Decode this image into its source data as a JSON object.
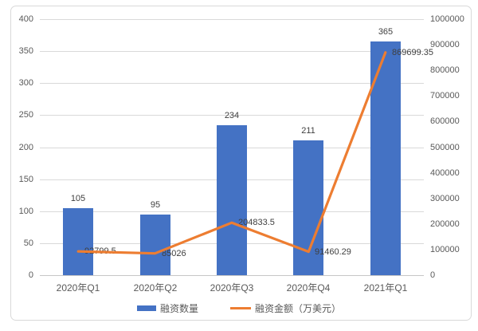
{
  "chart_data": {
    "type": "bar+line",
    "categories": [
      "2020年Q1",
      "2020年Q2",
      "2020年Q3",
      "2020年Q4",
      "2021年Q1"
    ],
    "series": [
      {
        "name": "融资数量",
        "type": "bar",
        "axis": "left",
        "color": "#4472C4",
        "values": [
          105,
          95,
          234,
          211,
          365
        ],
        "labels": [
          "105",
          "95",
          "234",
          "211",
          "365"
        ]
      },
      {
        "name": "融资金额（万美元）",
        "type": "line",
        "axis": "right",
        "color": "#ED7D31",
        "values": [
          92799.5,
          85026,
          204833.5,
          91460.29,
          869699.35
        ],
        "labels": [
          "92799.5",
          "85026",
          "204833.5",
          "91460.29",
          "869699.35"
        ]
      }
    ],
    "left_axis": {
      "min": 0,
      "max": 400,
      "step": 50,
      "ticks": [
        "0",
        "50",
        "100",
        "150",
        "200",
        "250",
        "300",
        "350",
        "400"
      ]
    },
    "right_axis": {
      "min": 0,
      "max": 1000000,
      "step": 100000,
      "ticks": [
        "0",
        "100000",
        "200000",
        "300000",
        "400000",
        "500000",
        "600000",
        "700000",
        "800000",
        "900000",
        "1000000"
      ]
    },
    "grid": true,
    "legend_position": "bottom"
  },
  "colors": {
    "bar": "#4472C4",
    "line": "#ED7D31",
    "gridline": "#D9D9D9",
    "axis_zero_line": "#C6C6C6",
    "axis_text": "#595959",
    "data_label": "#404040",
    "frame_border": "#D9D9D9",
    "background": "#FFFFFF"
  }
}
